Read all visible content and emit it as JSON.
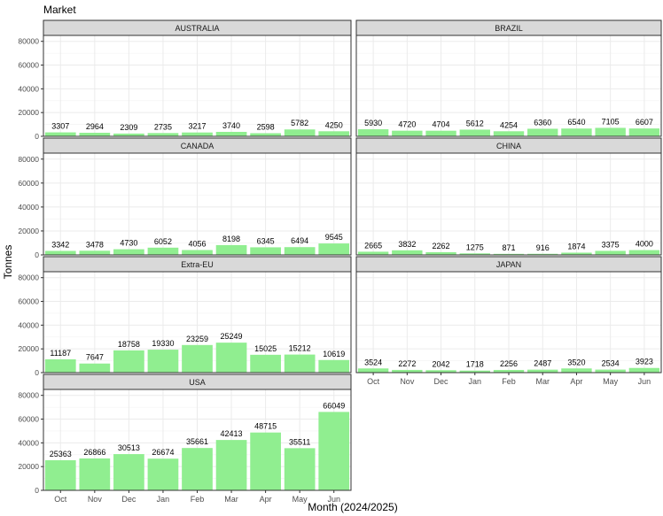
{
  "title": "Market",
  "chart_data": {
    "type": "bar",
    "title": "Market",
    "xlabel": "Month (2024/2025)",
    "ylabel": "Tonnes",
    "ylim": [
      0,
      85000
    ],
    "yticks": [
      0,
      20000,
      40000,
      60000,
      80000
    ],
    "grid": true,
    "bar_color": "#90ee90",
    "strip_fill": "#d9d9d9",
    "categories": [
      "Oct",
      "Nov",
      "Dec",
      "Jan",
      "Feb",
      "Mar",
      "Apr",
      "May",
      "Jun"
    ],
    "panels": [
      {
        "name": "AUSTRALIA",
        "values": [
          3307,
          2964,
          2309,
          2735,
          3217,
          3740,
          2598,
          5782,
          4250
        ]
      },
      {
        "name": "BRAZIL",
        "values": [
          5930,
          4720,
          4704,
          5612,
          4254,
          6360,
          6540,
          7105,
          6607
        ]
      },
      {
        "name": "CANADA",
        "values": [
          3342,
          3478,
          4730,
          6052,
          4056,
          8198,
          6345,
          6494,
          9545
        ]
      },
      {
        "name": "CHINA",
        "values": [
          2665,
          3832,
          2262,
          1275,
          871,
          916,
          1874,
          3375,
          4000
        ]
      },
      {
        "name": "Extra-EU",
        "values": [
          11187,
          7647,
          18758,
          19330,
          23259,
          25249,
          15025,
          15212,
          10619
        ]
      },
      {
        "name": "JAPAN",
        "values": [
          3524,
          2272,
          2042,
          1718,
          2256,
          2487,
          3520,
          2534,
          3923
        ]
      },
      {
        "name": "USA",
        "values": [
          25363,
          26866,
          30513,
          26674,
          35661,
          42413,
          48715,
          35511,
          66049
        ]
      }
    ]
  }
}
